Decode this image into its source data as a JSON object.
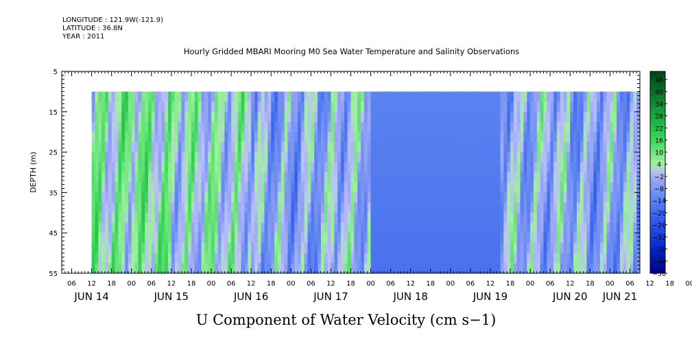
{
  "header": {
    "longitude": "LONGITUDE : 121.9W(-121.9)",
    "latitude": "LATITUDE : 36.8N",
    "year": "YEAR : 2011",
    "title": "Hourly Gridded MBARI Mooring M0 Sea Water Temperature and Salinity Observations"
  },
  "chart_data": {
    "type": "heatmap",
    "title": "Hourly Gridded MBARI Mooring M0 Sea Water Temperature and Salinity Observations",
    "xlabel": "U Component of Water Velocity (cm s−1)",
    "ylabel": "DEPTH (m)",
    "ylim": [
      55,
      5
    ],
    "y_ticks": [
      "5",
      "15",
      "25",
      "35",
      "45",
      "55"
    ],
    "hour_ticks": [
      "06",
      "12",
      "18",
      "00",
      "06",
      "12",
      "18",
      "00",
      "06",
      "12",
      "18",
      "00",
      "06",
      "12",
      "18",
      "00",
      "06",
      "12",
      "18",
      "00",
      "06",
      "12",
      "18",
      "00",
      "06",
      "12",
      "18",
      "00",
      "06",
      "12",
      "18",
      "00",
      "06"
    ],
    "date_labels": [
      "JUN 14",
      "JUN 15",
      "JUN 16",
      "JUN 17",
      "JUN 18",
      "JUN 19",
      "JUN 20",
      "JUN 21"
    ],
    "x_start": "2011-06-14 03:00",
    "x_end": "2011-06-21 09:00",
    "data_start": "2011-06-14 12:00",
    "data_depth_range": [
      10,
      55
    ],
    "colorbar": {
      "levels": [
        "46",
        "40",
        "34",
        "28",
        "22",
        "16",
        "10",
        "4",
        "−2",
        "−8",
        "−14",
        "−20",
        "−26",
        "−32",
        "−38",
        "−44",
        "−50"
      ],
      "min": -50,
      "max": 50
    },
    "u_velocity_by_day": [
      {
        "day": "JUN 14 12–24h",
        "typical_cm_s": 6
      },
      {
        "day": "JUN 15",
        "typical_cm_s": 2
      },
      {
        "day": "JUN 16",
        "typical_cm_s": -6
      },
      {
        "day": "JUN 17 00–12h",
        "typical_cm_s": -2
      },
      {
        "day": "JUN 17 12h – JUN 18 15h",
        "typical_cm_s": -14
      },
      {
        "day": "JUN 19",
        "typical_cm_s": -4
      },
      {
        "day": "JUN 20",
        "typical_cm_s": -6
      },
      {
        "day": "JUN 21",
        "typical_cm_s": -8
      }
    ]
  }
}
